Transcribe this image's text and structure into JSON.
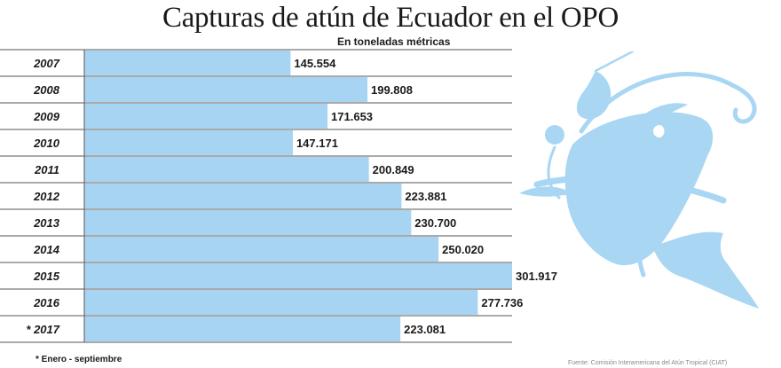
{
  "chart_data": {
    "type": "bar",
    "orientation": "horizontal",
    "title": "Capturas de atún de Ecuador en el OPO",
    "subtitle": "En toneladas métricas",
    "categories": [
      "2007",
      "2008",
      "2009",
      "2010",
      "2011",
      "2012",
      "2013",
      "2014",
      "2015",
      "2016",
      "* 2017"
    ],
    "values": [
      145554,
      199808,
      171653,
      147171,
      200849,
      223881,
      230700,
      250020,
      301917,
      277736,
      223081
    ],
    "value_labels": [
      "145.554",
      "199.808",
      "171.653",
      "147.171",
      "200.849",
      "223.881",
      "230.700",
      "250.020",
      "301.917",
      "277.736",
      "223.081"
    ],
    "xlim": [
      0,
      301917
    ],
    "footnote": "* Enero - septiembre",
    "source": "Fuente: Comisión Interamericana del Atún Tropical (CIAT)",
    "colors": {
      "bar": "#a7d4f2",
      "fish": "#a9d6f3",
      "rule": "#555555",
      "text": "#1a1a1a"
    }
  }
}
